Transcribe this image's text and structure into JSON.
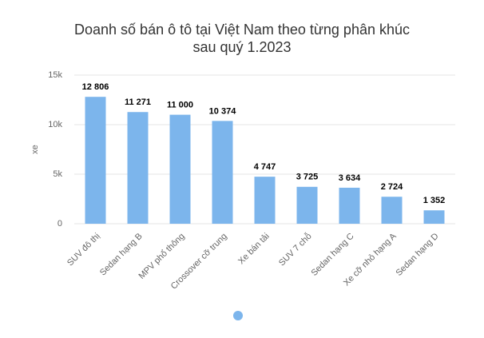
{
  "chart_data": {
    "type": "bar",
    "title": [
      "Doanh số bán ô tô tại Việt Nam theo từng phân khúc",
      "sau quý 1.2023"
    ],
    "y_axis_label": "xe",
    "categories": [
      "SUV đô thị",
      "Sedan hạng B",
      "MPV phổ thông",
      "Crossover cỡ trung",
      "Xe bán tải",
      "SUV 7 chỗ",
      "Sedan hạng C",
      "Xe cỡ nhỏ hạng A",
      "Sedan hạng D"
    ],
    "values": [
      12806,
      11271,
      11000,
      10374,
      4747,
      3725,
      3634,
      2724,
      1352
    ],
    "value_labels": [
      "12 806",
      "11 271",
      "11 000",
      "10 374",
      "4 747",
      "3 725",
      "3 634",
      "2 724",
      "1 352"
    ],
    "color": "#7cb5ec",
    "ylim": [
      0,
      15000
    ],
    "yticks": [
      0,
      {
        "value": 5000,
        "label": "5k"
      },
      {
        "value": 10000,
        "label": "10k"
      },
      {
        "value": 15000,
        "label": "15k"
      }
    ],
    "grid": true
  }
}
